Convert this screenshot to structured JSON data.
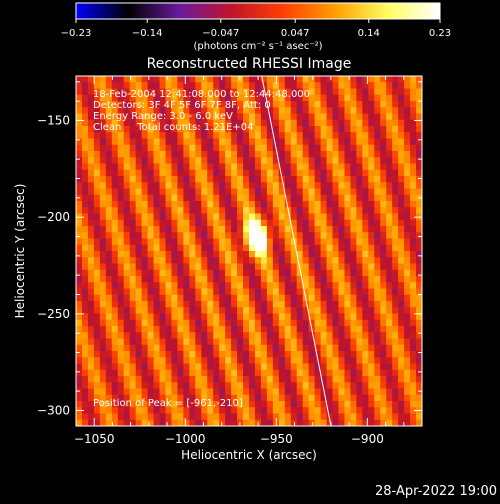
{
  "chart_data": {
    "type": "heatmap",
    "title": "Reconstructed RHESSI Image",
    "xlabel": "Heliocentric X (arcsec)",
    "ylabel": "Heliocentric Y (arcsec)",
    "xlim": [
      -1060,
      -870
    ],
    "ylim": [
      -308,
      -127
    ],
    "x_ticks": [
      -1050,
      -1000,
      -950,
      -900
    ],
    "y_ticks": [
      -150,
      -200,
      -250,
      -300
    ],
    "x_tick_labels": [
      "−1050",
      "−1000",
      "−950",
      "−900"
    ],
    "y_tick_labels": [
      "−150",
      "−200",
      "−250",
      "−300"
    ],
    "colorbar": {
      "min": -0.23,
      "max": 0.23,
      "ticks": [
        -0.23,
        -0.14,
        -0.047,
        0.047,
        0.14,
        0.23
      ],
      "tick_labels": [
        "−0.23",
        "−0.14",
        "−0.047",
        "0.047",
        "0.14",
        "0.23"
      ],
      "unit_label": "(photons cm⁻² s⁻¹ asec⁻²)",
      "colors": [
        "#0000ff",
        "#000000",
        "#6a1a9e",
        "#c0142a",
        "#ff4000",
        "#ffa000",
        "#ffff60",
        "#ffffff"
      ]
    },
    "annotations": [
      "18-Feb-2004 12:41:08.000 to 12:44:48.000",
      "Detectors: 3F 4F 5F 6F 7F 8F, Att: 0",
      "Energy Range: 3.0 - 6.0 keV",
      "Clean     Total counts: 1.21E+04"
    ],
    "peak_label": "Position of Peak = [-961,-210]",
    "peak": {
      "x": -961,
      "y": -210,
      "value": 0.23
    },
    "limb_line": [
      [
        -958,
        -127
      ],
      [
        -920,
        -308
      ]
    ],
    "grid": false
  },
  "footer": {
    "timestamp": "28-Apr-2022 19:00"
  }
}
